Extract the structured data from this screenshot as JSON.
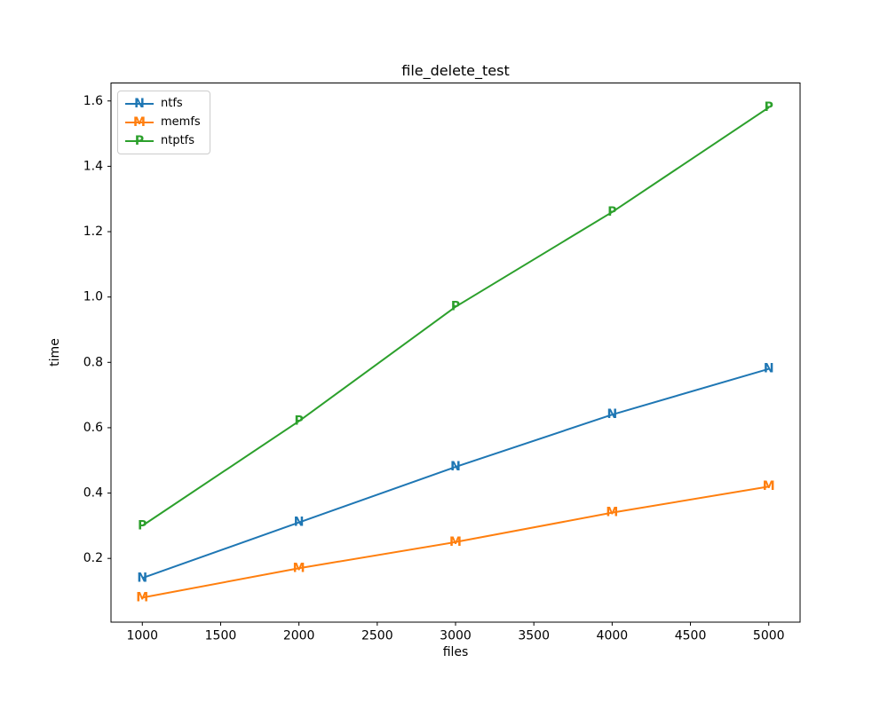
{
  "chart_data": {
    "type": "line",
    "title": "file_delete_test",
    "xlabel": "files",
    "ylabel": "time",
    "x": [
      1000,
      2000,
      3000,
      4000,
      5000
    ],
    "series": [
      {
        "name": "ntfs",
        "marker": "N",
        "color": "#1f77b4",
        "values": [
          0.14,
          0.31,
          0.48,
          0.64,
          0.78
        ]
      },
      {
        "name": "memfs",
        "marker": "M",
        "color": "#ff7f0e",
        "values": [
          0.08,
          0.17,
          0.25,
          0.34,
          0.42
        ]
      },
      {
        "name": "ntptfs",
        "marker": "P",
        "color": "#2ca02c",
        "values": [
          0.3,
          0.62,
          0.97,
          1.26,
          1.58
        ]
      }
    ],
    "xlim": [
      800,
      5200
    ],
    "ylim": [
      0.005,
      1.655
    ],
    "x_ticks": [
      1000,
      1500,
      2000,
      2500,
      3000,
      3500,
      4000,
      4500,
      5000
    ],
    "y_ticks": [
      0.2,
      0.4,
      0.6,
      0.8,
      1.0,
      1.2,
      1.4,
      1.6
    ],
    "grid": false,
    "legend_position": "upper left",
    "axis_color": "#000000",
    "background_color": "#ffffff"
  }
}
